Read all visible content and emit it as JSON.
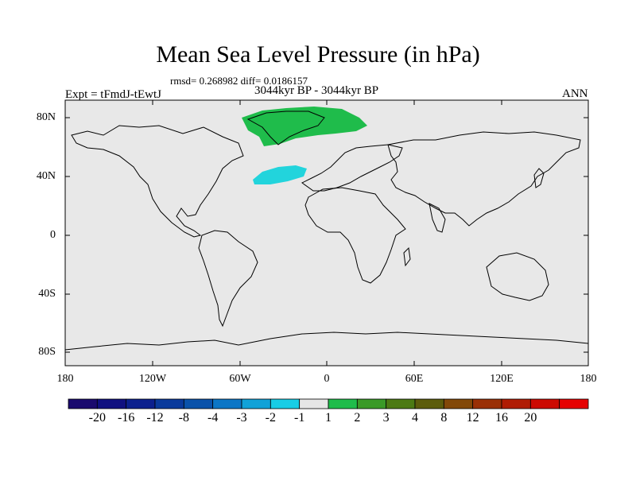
{
  "title": "Mean Sea Level Pressure (in hPa)",
  "stats_line": "rmsd= 0.268982 diff= 0.0186157",
  "period_line": "3044kyr BP - 3044kyr BP",
  "experiment_label": "Expt = tFmdJ-tEwtJ",
  "season_label": "ANN",
  "map": {
    "lat_ticks": [
      "80N",
      "40N",
      "0",
      "40S",
      "80S"
    ],
    "lon_ticks": [
      "180",
      "120W",
      "60W",
      "0",
      "60E",
      "120E",
      "180"
    ],
    "background_color": "#e8e8e8",
    "anomalies": [
      {
        "name": "greenland-positive-anomaly",
        "level": "1 to 2",
        "color": "#1fbc4b"
      },
      {
        "name": "north-atlantic-negative-anomaly",
        "level": "-2 to -1",
        "color": "#22d4dc"
      }
    ]
  },
  "colorbar": {
    "labels": [
      "-20",
      "-16",
      "-12",
      "-8",
      "-4",
      "-3",
      "-2",
      "-1",
      "1",
      "2",
      "3",
      "4",
      "8",
      "12",
      "16",
      "20"
    ],
    "colors": [
      "#1a0a6e",
      "#101080",
      "#0c208e",
      "#0a3a9c",
      "#0a52aa",
      "#0c76c6",
      "#11a2d8",
      "#18cde6",
      "#e6e6e6",
      "#1fbc4b",
      "#3a9a28",
      "#4c7a14",
      "#5c5c0c",
      "#824808",
      "#9a3006",
      "#b01c04",
      "#cc0a02",
      "#e60000"
    ]
  }
}
